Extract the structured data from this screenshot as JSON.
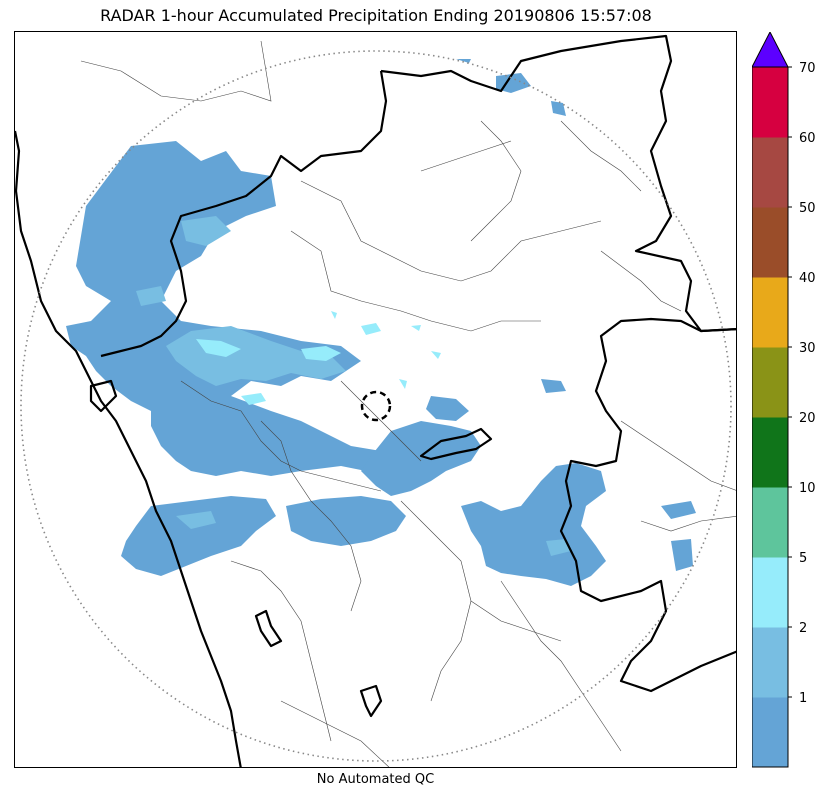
{
  "title": "RADAR 1-hour Accumulated Precipitation Ending 20190806 15:57:08",
  "footer": "No Automated QC",
  "colorbar": {
    "extend": "max",
    "extend_color": "#5c00ff",
    "bins": [
      {
        "lower": 0,
        "upper": 1,
        "color": "#64a4d6"
      },
      {
        "lower": 1,
        "upper": 2,
        "color": "#78bee2"
      },
      {
        "lower": 2,
        "upper": 5,
        "color": "#96ecfb"
      },
      {
        "lower": 5,
        "upper": 10,
        "color": "#5ec59c"
      },
      {
        "lower": 10,
        "upper": 20,
        "color": "#10751a"
      },
      {
        "lower": 20,
        "upper": 30,
        "color": "#8a9317"
      },
      {
        "lower": 30,
        "upper": 40,
        "color": "#e8a91a"
      },
      {
        "lower": 40,
        "upper": 50,
        "color": "#9a4d29"
      },
      {
        "lower": 50,
        "upper": 60,
        "color": "#a64842"
      },
      {
        "lower": 60,
        "upper": 70,
        "color": "#d60040"
      }
    ],
    "tick_labels": [
      "1",
      "2",
      "5",
      "10",
      "20",
      "30",
      "40",
      "50",
      "60",
      "70"
    ]
  },
  "map": {
    "range_ring": "dotted",
    "radar_site_marker": "dashed-circle",
    "precip_color_main": "#64a4d6",
    "precip_color_light": "#78bee2",
    "precip_color_cyan": "#96ecfb",
    "state_border_color": "#000000",
    "district_border_color": "#444444"
  }
}
